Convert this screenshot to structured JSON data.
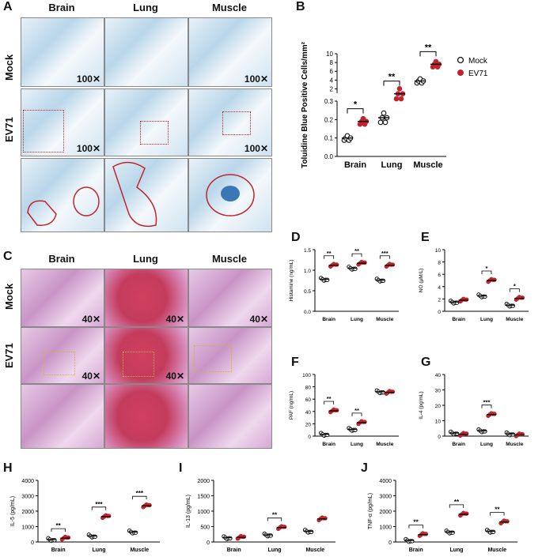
{
  "panels": {
    "A": "A",
    "B": "B",
    "C": "C",
    "D": "D",
    "E": "E",
    "F": "F",
    "G": "G",
    "H": "H",
    "I": "I",
    "J": "J"
  },
  "histology_A": {
    "columns": [
      "Brain",
      "Lung",
      "Muscle"
    ],
    "rows": [
      "Mock",
      "EV71"
    ],
    "magnification": "100✕"
  },
  "histology_C": {
    "columns": [
      "Brain",
      "Lung",
      "Muscle"
    ],
    "rows": [
      "Mock",
      "EV71"
    ],
    "magnification": "40✕"
  },
  "colors": {
    "mock": "#111111",
    "ev71": "#c0242c",
    "tb_stain": "#3a78b5",
    "he_stain": "#b34fa6"
  },
  "chart_data": [
    {
      "id": "B",
      "type": "scatter",
      "categories": [
        "Brain",
        "Lung",
        "Muscle"
      ],
      "ylabel": "Toluidine Blue Positive Cells/mm²",
      "yticks_low": [
        "0.0",
        "0.1",
        "0.2",
        "0.3"
      ],
      "yticks_high": [
        "2",
        "4",
        "6",
        "8",
        "10"
      ],
      "axis_break": true,
      "legend": [
        "Mock",
        "EV71"
      ],
      "legend_position": "right",
      "series": [
        {
          "name": "Mock",
          "values": [
            0.1,
            0.21,
            3.8
          ]
        },
        {
          "name": "EV71",
          "values": [
            0.19,
            0.34,
            7.6
          ]
        }
      ],
      "significance": [
        "*",
        "**",
        "**"
      ]
    },
    {
      "id": "D",
      "type": "scatter",
      "categories": [
        "Brain",
        "Lung",
        "Muscle"
      ],
      "ylabel": "Histamine (ng/mL)",
      "ylim": [
        0,
        1.5
      ],
      "yticks": [
        "0.0",
        "0.5",
        "1.0",
        "1.5"
      ],
      "series": [
        {
          "values": [
            0.78,
            1.05,
            0.76
          ]
        },
        {
          "values": [
            1.12,
            1.17,
            1.12
          ]
        }
      ],
      "significance": [
        "**",
        "**",
        "***"
      ]
    },
    {
      "id": "E",
      "type": "scatter",
      "categories": [
        "Brain",
        "Lung",
        "Muscle"
      ],
      "ylabel": "NO (μM/L)",
      "ylim": [
        0,
        10
      ],
      "yticks": [
        "0",
        "2",
        "4",
        "6",
        "8",
        "10"
      ],
      "series": [
        {
          "values": [
            1.5,
            2.5,
            1.0
          ]
        },
        {
          "values": [
            1.8,
            5.0,
            2.1
          ]
        }
      ],
      "significance": [
        "",
        "*",
        "*"
      ]
    },
    {
      "id": "F",
      "type": "scatter",
      "categories": [
        "Brain",
        "Lung",
        "Muscle"
      ],
      "ylabel": "PAF (ng/mL)",
      "ylim": [
        0,
        100
      ],
      "yticks": [
        "0",
        "20",
        "40",
        "60",
        "80",
        "100"
      ],
      "series": [
        {
          "values": [
            3,
            11,
            72
          ]
        },
        {
          "values": [
            41,
            22,
            71
          ]
        }
      ],
      "significance": [
        "**",
        "**",
        ""
      ]
    },
    {
      "id": "G",
      "type": "scatter",
      "categories": [
        "Brain",
        "Lung",
        "Muscle"
      ],
      "ylabel": "IL-4 (pg/mL)",
      "ylim": [
        0,
        40
      ],
      "yticks": [
        "0",
        "10",
        "20",
        "30",
        "40"
      ],
      "series": [
        {
          "values": [
            2,
            3.5,
            1.5
          ]
        },
        {
          "values": [
            1.2,
            14,
            0.8
          ]
        }
      ],
      "significance": [
        "",
        "***",
        ""
      ]
    },
    {
      "id": "H",
      "type": "scatter",
      "categories": [
        "Brain",
        "Lung",
        "Muscle"
      ],
      "ylabel": "IL-5 (pg/mL)",
      "ylim": [
        0,
        4000
      ],
      "yticks": [
        "0",
        "1000",
        "2000",
        "3000",
        "4000"
      ],
      "series": [
        {
          "values": [
            160,
            390,
            650
          ]
        },
        {
          "values": [
            250,
            1650,
            2350
          ]
        }
      ],
      "significance": [
        "**",
        "***",
        "***"
      ]
    },
    {
      "id": "I",
      "type": "scatter",
      "categories": [
        "Brain",
        "Lung",
        "Muscle"
      ],
      "ylabel": "IL-13 (pg/mL)",
      "ylim": [
        0,
        2000
      ],
      "yticks": [
        "0",
        "500",
        "1000",
        "1500",
        "2000"
      ],
      "series": [
        {
          "values": [
            140,
            230,
            350
          ]
        },
        {
          "values": [
            150,
            470,
            750
          ]
        }
      ],
      "significance": [
        "",
        "**",
        ""
      ]
    },
    {
      "id": "J",
      "type": "scatter",
      "categories": [
        "Brain",
        "Lung",
        "Muscle"
      ],
      "ylabel": "TNF-α (pg/mL)",
      "ylim": [
        0,
        4000
      ],
      "yticks": [
        "0",
        "1000",
        "2000",
        "3000",
        "4000"
      ],
      "series": [
        {
          "values": [
            100,
            650,
            700
          ]
        },
        {
          "values": [
            480,
            1800,
            1300
          ]
        }
      ],
      "significance": [
        "**",
        "**",
        "**"
      ]
    }
  ]
}
